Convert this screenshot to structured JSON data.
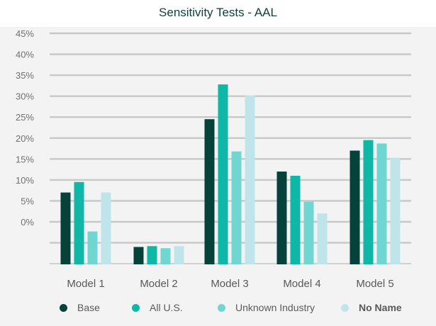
{
  "chart_data": {
    "type": "bar",
    "title": "Sensitivity Tests - AAL",
    "xlabel": "",
    "ylabel": "",
    "ytick_labels": [
      "45%",
      "40%",
      "35%",
      "30%",
      "25%",
      "20%",
      "15%",
      "10%",
      "5%",
      "0%"
    ],
    "categories": [
      "Model 1",
      "Model 2",
      "Model 3",
      "Model 4",
      "Model 5"
    ],
    "series": [
      {
        "name": "Base",
        "color": "#06413a",
        "values": [
          7.0,
          -6.0,
          24.5,
          12.0,
          17.0
        ]
      },
      {
        "name": "All U.S.",
        "color": "#0fb8a6",
        "values": [
          9.5,
          -5.8,
          32.8,
          11.0,
          19.5
        ]
      },
      {
        "name": "Unknown Industry",
        "color": "#6fd6d2",
        "values": [
          -2.3,
          -6.3,
          16.8,
          4.8,
          18.7
        ]
      },
      {
        "name": "No Name",
        "color": "#bfe5ea",
        "values": [
          7.0,
          -5.8,
          30.2,
          2.0,
          15.3
        ]
      }
    ],
    "ylim": [
      -10,
      45
    ],
    "grid": true,
    "legend": "bottom"
  }
}
